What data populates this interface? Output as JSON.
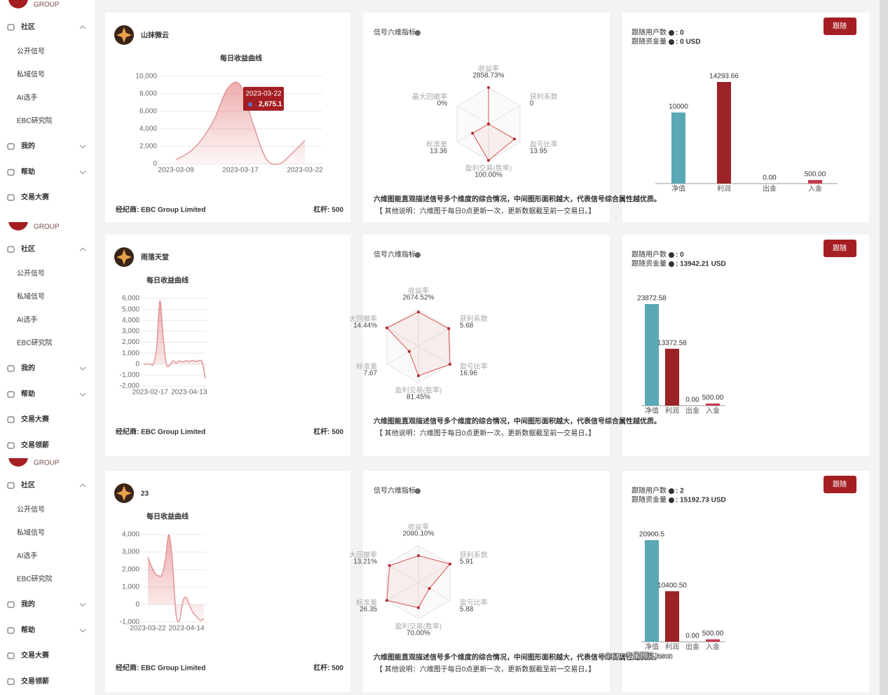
{
  "panels": [
    {
      "sidebar": {
        "logo": "GROUP",
        "menu": [
          "社区",
          "公开信号",
          "私域信号",
          "AI选手",
          "EBC研究院",
          "我的",
          "帮助",
          "交易大赛"
        ]
      },
      "name": "山抹微云",
      "profit_chart": {
        "type": "line",
        "title": "每日收益曲线",
        "categories": [
          "2023-03-09",
          null,
          null,
          null,
          null,
          "2023-03-17",
          null,
          null,
          null,
          null,
          "2023-03-22"
        ],
        "values": [
          500,
          1300,
          2800,
          5200,
          8600,
          9000,
          4500,
          600,
          0,
          1200,
          2675.1
        ],
        "color": "#e08a8a",
        "ylim": [
          0,
          10000
        ],
        "yticks": [
          0,
          {
            "value": 2000,
            "label": "2,000"
          },
          {
            "value": 4000,
            "label": "4,000"
          },
          {
            "value": 6000,
            "label": "6,000"
          },
          {
            "value": 8000,
            "label": "8,000"
          },
          {
            "value": 10000,
            "label": "10,000"
          }
        ],
        "tooltip": {
          "value": 2675.1,
          "label": "2,675.1"
        }
      },
      "broker": "经纪商: EBC Group Limited",
      "leverage": "杠杆: 500",
      "radar": {
        "type": "radar",
        "title": "信号六维指标",
        "axes": [
          "收益率",
          "获利系数",
          "盈亏比率",
          "盈利交易(胜率)",
          "标准差",
          "最大回撤率"
        ],
        "values": [
          2858.73,
          0,
          13.95,
          100.0,
          13.36,
          0
        ],
        "value_labels": [
          "2858.73%",
          "0",
          "13.95",
          "100.00%",
          "13.36",
          "0%"
        ],
        "color": "#d9534f",
        "description": "六维图能直观描述信号多个维度的综合情况，中间图形面积越大，代表信号综合属性越优质。",
        "note": "【 其他说明：六维图于每日0点更新一次，更新数据截至前一交易日。】"
      },
      "follow": {
        "users_label": "跟随用户数",
        "users": ": 0",
        "capital_label": "跟随资金量",
        "capital": ": 0 USD",
        "button": "跟随"
      },
      "funds": {
        "type": "bar",
        "categories": [
          "净值",
          "利润",
          "出金",
          "入金"
        ],
        "values": [
          10000,
          14293.66,
          0,
          500
        ],
        "value_labels": [
          "10000",
          "14293.66",
          "0.00",
          "500.00"
        ],
        "colors": [
          "#5aa7b5",
          "#9b2226",
          "#9b2226",
          "#c8374b"
        ]
      }
    },
    {
      "sidebar": {
        "logo": "GROUP",
        "menu": [
          "社区",
          "公开信号",
          "私域信号",
          "AI选手",
          "EBC研究院",
          "我的",
          "帮助",
          "交易大赛",
          "交易领薪"
        ]
      },
      "name": "雨落天堂",
      "profit_chart": {
        "type": "line",
        "title": "每日收益曲线",
        "categories": [
          null,
          null,
          "2023-02-17",
          null,
          null,
          null,
          null,
          null,
          null,
          null,
          null,
          null,
          null,
          null,
          "2023-04-13",
          null,
          null,
          null,
          null,
          null
        ],
        "values": [
          0,
          0,
          0,
          0,
          1500,
          5800,
          2500,
          0,
          -100,
          300,
          100,
          300,
          200,
          300,
          250,
          350,
          250,
          300,
          200,
          -1300
        ],
        "color": "#e08a8a",
        "ylim": [
          -2000,
          6000
        ],
        "yticks": [
          {
            "value": -2000,
            "label": "-2,000"
          },
          {
            "value": -1000,
            "label": "-1,000"
          },
          0,
          {
            "value": 1000,
            "label": "1,000"
          },
          {
            "value": 2000,
            "label": "2,000"
          },
          {
            "value": 3000,
            "label": "3,000"
          },
          {
            "value": 4000,
            "label": "4,000"
          },
          {
            "value": 5000,
            "label": "5,000"
          },
          {
            "value": 6000,
            "label": "6,000"
          }
        ]
      },
      "broker": "经纪商: EBC Group Limited",
      "leverage": "杠杆: 500",
      "radar": {
        "type": "radar",
        "title": "信号六维指标",
        "axes": [
          "收益率",
          "获利系数",
          "盈亏比率",
          "盈利交易(胜率)",
          "标准差",
          "大回撤率"
        ],
        "values": [
          2674.52,
          5.68,
          16.96,
          81.45,
          7.67,
          14.44
        ],
        "value_labels": [
          "2674.52%",
          "5.68",
          "16.96",
          "81.45%",
          "7.67",
          "14.44%"
        ],
        "color": "#d9534f",
        "description": "六维图能直观描述信号多个维度的综合情况，中间图形面积越大，代表信号综合属性越优质。",
        "note": "【 其他说明：六维图于每日0点更新一次，更新数据截至前一交易日。】"
      },
      "follow": {
        "users_label": "跟随用户数",
        "users": ": 0",
        "capital_label": "跟随资金量",
        "capital": ": 13942.21 USD",
        "button": "跟随"
      },
      "funds": {
        "type": "bar",
        "categories": [
          "净值",
          "利润",
          "出金",
          "入金"
        ],
        "values": [
          23872.58,
          13372.58,
          0,
          500
        ],
        "value_labels": [
          "23872.58",
          "13372.58",
          "0.00",
          "500.00"
        ],
        "colors": [
          "#5aa7b5",
          "#9b2226",
          "#9b2226",
          "#c8374b"
        ]
      }
    },
    {
      "sidebar": {
        "logo": "GROUP",
        "menu": [
          "社区",
          "公开信号",
          "私域信号",
          "AI选手",
          "EBC研究院",
          "我的",
          "帮助",
          "交易大赛",
          "交易领薪"
        ]
      },
      "name": "23",
      "profit_chart": {
        "type": "line",
        "title": "每日收益曲线",
        "categories": [
          "2023-03-22",
          null,
          null,
          null,
          null,
          null,
          null,
          null,
          null,
          null,
          null,
          "2023-04-14",
          null,
          null,
          null,
          null,
          null
        ],
        "values": [
          2700,
          2200,
          1800,
          1650,
          1700,
          2600,
          4000,
          2500,
          -500,
          -900,
          200,
          400,
          -100,
          -500,
          -700,
          -900,
          -800
        ],
        "color": "#e08a8a",
        "ylim": [
          -1000,
          4000
        ],
        "yticks": [
          {
            "value": -1000,
            "label": "-1,000"
          },
          0,
          {
            "value": 1000,
            "label": "1,000"
          },
          {
            "value": 2000,
            "label": "2,000"
          },
          {
            "value": 3000,
            "label": "3,000"
          },
          {
            "value": 4000,
            "label": "4,000"
          }
        ]
      },
      "broker": "经纪商: EBC Group Limited",
      "leverage": "杠杆: 500",
      "radar": {
        "type": "radar",
        "title": "信号六维指标",
        "axes": [
          "收益率",
          "获利系数",
          "盈亏比率",
          "盈利交易(胜率)",
          "标准差",
          "大回撤率"
        ],
        "values": [
          2080.1,
          5.91,
          5.88,
          70.0,
          26.35,
          13.21
        ],
        "value_labels": [
          "2080.10%",
          "5.91",
          "5.88",
          "70.00%",
          "26.35",
          "13.21%"
        ],
        "color": "#d9534f",
        "description": "六维图能直观描述信号多个维度的综合情况，中间图形面积越大，代表信号综合属性越优质。",
        "note": "【 其他说明：六维图于每日0点更新一次，更新数据截至前一交易日。】"
      },
      "follow": {
        "users_label": "跟随用户数",
        "users": ": 2",
        "capital_label": "跟随资金量",
        "capital": ": 15192.73 USD",
        "button": "跟随"
      },
      "funds": {
        "type": "bar",
        "categories": [
          "净值",
          "利润",
          "出金",
          "入金"
        ],
        "values": [
          20900.5,
          10400.5,
          0,
          500
        ],
        "value_labels": [
          "20900.5",
          "10400.50",
          "0.00",
          "500.00"
        ],
        "colors": [
          "#5aa7b5",
          "#9b2226",
          "#9b2226",
          "#c8374b"
        ]
      }
    }
  ],
  "watermark": "@EBC专属顾问Jason"
}
